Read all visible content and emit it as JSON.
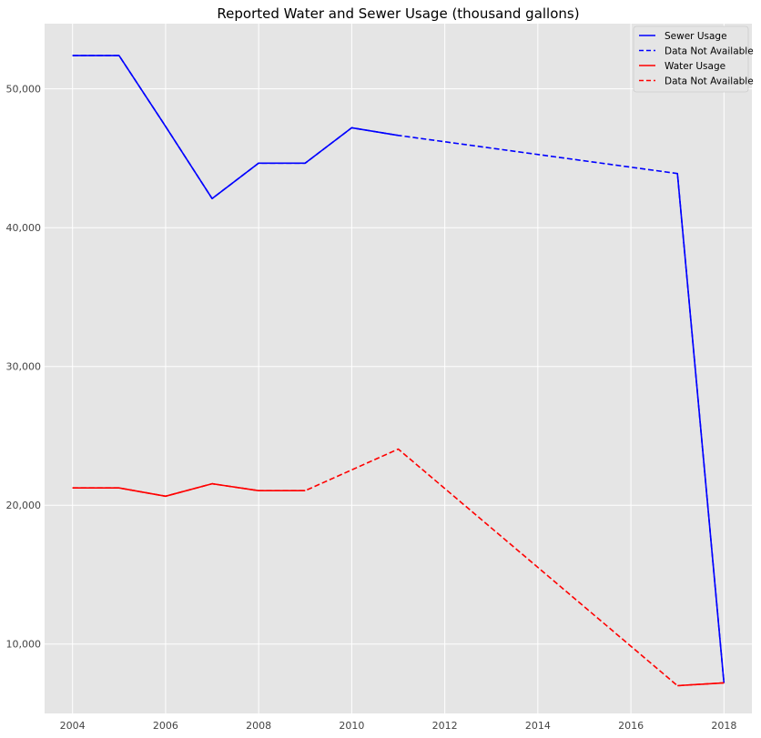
{
  "chart_data": {
    "type": "line",
    "title": "Reported Water and Sewer Usage (thousand gallons)",
    "xlabel": "",
    "ylabel": "",
    "xlim": [
      2003.4,
      2018.6
    ],
    "ylim": [
      5000,
      54700
    ],
    "x_ticks": [
      2004,
      2006,
      2008,
      2010,
      2012,
      2014,
      2016,
      2018
    ],
    "x_tick_labels": [
      "2004",
      "2006",
      "2008",
      "2010",
      "2012",
      "2014",
      "2016",
      "2018"
    ],
    "y_ticks": [
      10000,
      20000,
      30000,
      40000,
      50000
    ],
    "y_tick_labels": [
      "10,000",
      "20,000",
      "30,000",
      "40,000",
      "50,000"
    ],
    "grid": true,
    "legend_position": "top-right",
    "series": [
      {
        "name": "Sewer Usage",
        "color": "#0000ff",
        "style": "solid",
        "points": [
          [
            2004,
            52400
          ],
          [
            2005,
            52400
          ],
          [
            2006,
            47300
          ],
          [
            2007,
            42100
          ],
          [
            2008,
            44650
          ],
          [
            2009,
            44650
          ],
          [
            2010,
            47200
          ],
          [
            2011,
            46650
          ]
        ]
      },
      {
        "name": "Data Not Available",
        "color": "#0000ff",
        "style": "dashed",
        "points": [
          [
            2004,
            52400
          ],
          [
            2005,
            52400
          ],
          [
            2006,
            47300
          ],
          [
            2007,
            42100
          ],
          [
            2008,
            44650
          ],
          [
            2009,
            44650
          ],
          [
            2010,
            47200
          ],
          [
            2011,
            46650
          ],
          [
            2017,
            43900
          ],
          [
            2018,
            7200
          ]
        ]
      },
      {
        "name": "Water Usage",
        "color": "#ff0000",
        "style": "solid",
        "points": [
          [
            2004,
            21250
          ],
          [
            2005,
            21250
          ],
          [
            2006,
            20650
          ],
          [
            2007,
            21550
          ],
          [
            2008,
            21050
          ],
          [
            2009,
            21050
          ]
        ]
      },
      {
        "name": "Data Not Available",
        "color": "#ff0000",
        "style": "dashed",
        "points": [
          [
            2004,
            21250
          ],
          [
            2005,
            21250
          ],
          [
            2006,
            20650
          ],
          [
            2007,
            21550
          ],
          [
            2008,
            21050
          ],
          [
            2009,
            21050
          ],
          [
            2011,
            24050
          ],
          [
            2017,
            7000
          ],
          [
            2018,
            7200
          ]
        ]
      },
      {
        "name": "",
        "color": "#0000ff",
        "style": "solid",
        "points": [
          [
            2017,
            43900
          ],
          [
            2018,
            7200
          ]
        ]
      },
      {
        "name": "",
        "color": "#ff0000",
        "style": "solid",
        "points": [
          [
            2017,
            7000
          ],
          [
            2018,
            7200
          ]
        ]
      }
    ],
    "legend": [
      {
        "label": "Sewer Usage",
        "color": "#0000ff",
        "style": "solid"
      },
      {
        "label": "Data Not Available",
        "color": "#0000ff",
        "style": "dashed"
      },
      {
        "label": "Water Usage",
        "color": "#ff0000",
        "style": "solid"
      },
      {
        "label": "Data Not Available",
        "color": "#ff0000",
        "style": "dashed"
      }
    ],
    "colors": {
      "plot_background": "#e5e5e5",
      "grid": "#ffffff",
      "legend_background": "#e5e5e5"
    }
  }
}
